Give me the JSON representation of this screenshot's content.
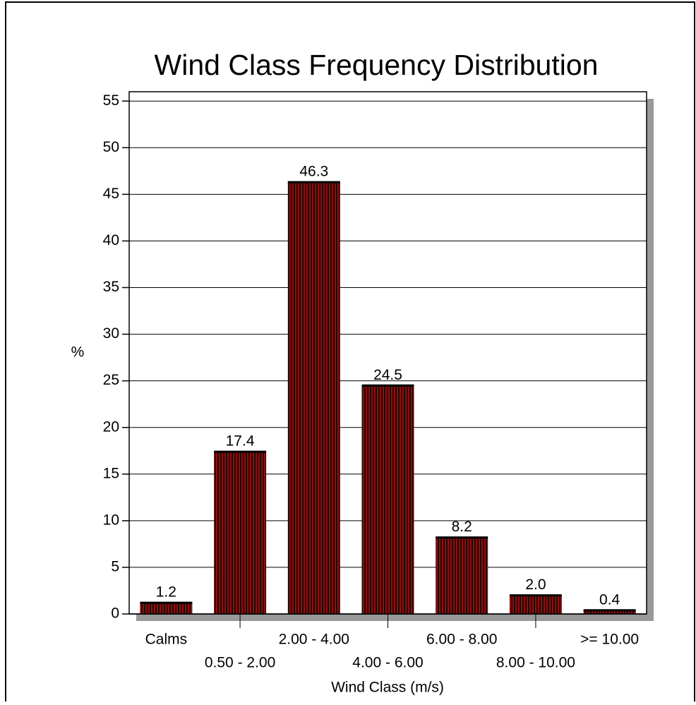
{
  "chart_data": {
    "type": "bar",
    "title": "Wind Class Frequency Distribution",
    "x_label": "Wind Class (m/s)",
    "y_label": "%",
    "categories": [
      "Calms",
      "0.50 - 2.00",
      "2.00 - 4.00",
      "4.00 - 6.00",
      "6.00 - 8.00",
      "8.00 - 10.00",
      ">= 10.00"
    ],
    "values": [
      1.2,
      17.4,
      46.3,
      24.5,
      8.2,
      2.0,
      0.4
    ],
    "value_labels": [
      "1.2",
      "17.4",
      "46.3",
      "24.5",
      "8.2",
      "2.0",
      "0.4"
    ],
    "color": "#8b1010",
    "ylim": [
      0,
      56
    ],
    "yticks": [
      0,
      5,
      10,
      15,
      20,
      25,
      30,
      35,
      40,
      45,
      50,
      55
    ],
    "grid": true
  }
}
